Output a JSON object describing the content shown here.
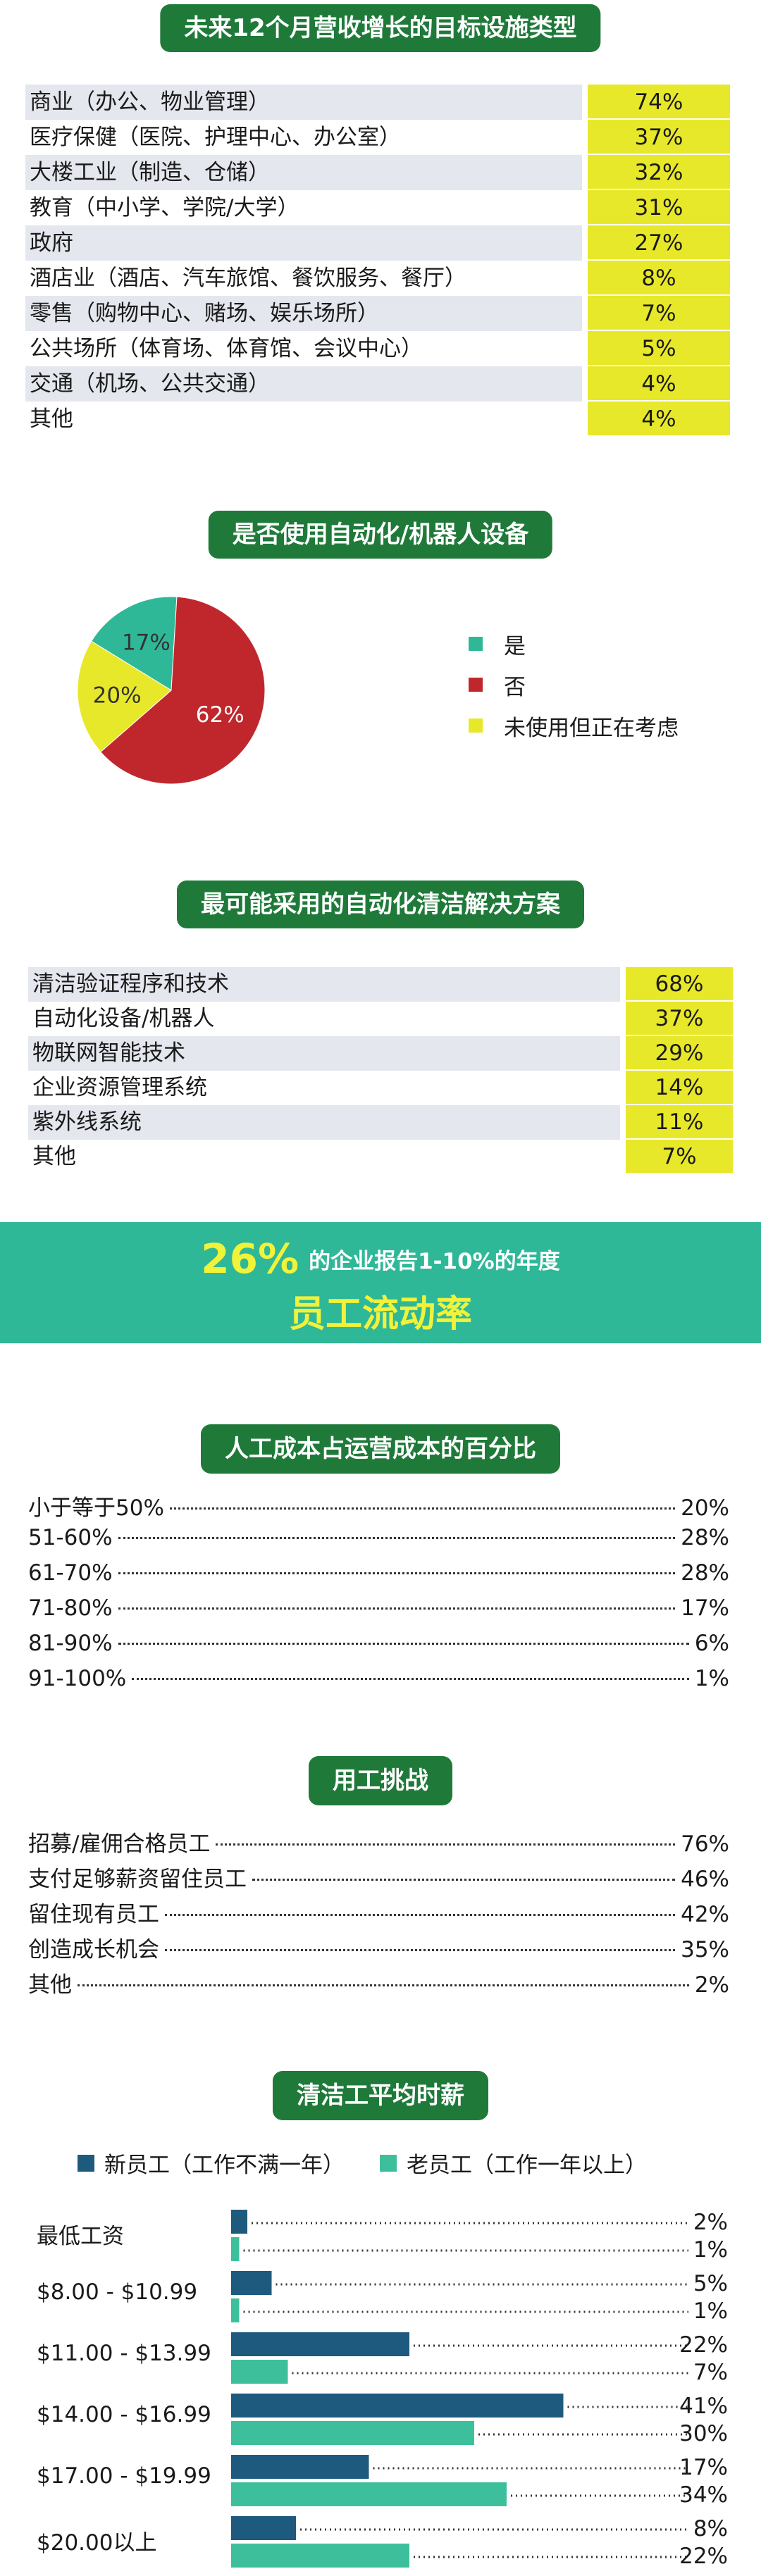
{
  "colors": {
    "title_green": "#1f7a3a",
    "highlight_yellow": "#e8e82a",
    "row_shade": "#e4e7ed",
    "pie_yes": "#2fb897",
    "pie_no": "#c0272d",
    "pie_considering": "#e8e82a",
    "banner_bg": "#2fb897",
    "banner_text_yellow": "#f1f23a",
    "new_staff": "#1e5a7e",
    "old_staff": "#3dbf9c"
  },
  "section1": {
    "title": "未来12个月营收增长的目标设施类型",
    "rows": [
      {
        "label": "商业（办公、物业管理）",
        "value": "74%"
      },
      {
        "label": "医疗保健（医院、护理中心、办公室）",
        "value": "37%"
      },
      {
        "label": "大楼工业（制造、仓储）",
        "value": "32%"
      },
      {
        "label": "教育（中小学、学院/大学）",
        "value": "31%"
      },
      {
        "label": "政府",
        "value": "27%"
      },
      {
        "label": "酒店业（酒店、汽车旅馆、餐饮服务、餐厅）",
        "value": "8%"
      },
      {
        "label": "零售（购物中心、赌场、娱乐场所）",
        "value": "7%"
      },
      {
        "label": "公共场所（体育场、体育馆、会议中心）",
        "value": "5%"
      },
      {
        "label": "交通（机场、公共交通）",
        "value": "4%"
      },
      {
        "label": "其他",
        "value": "4%"
      }
    ]
  },
  "section2": {
    "title": "是否使用自动化/机器人设备",
    "legend": [
      {
        "label": "是",
        "color": "#2fb897"
      },
      {
        "label": "否",
        "color": "#c0272d"
      },
      {
        "label": "未使用但正在考虑",
        "color": "#e8e82a"
      }
    ]
  },
  "section3": {
    "title": "最可能采用的自动化清洁解决方案",
    "rows": [
      {
        "label": "清洁验证程序和技术",
        "value": "68%"
      },
      {
        "label": "自动化设备/机器人",
        "value": "37%"
      },
      {
        "label": "物联网智能技术",
        "value": "29%"
      },
      {
        "label": "企业资源管理系统",
        "value": "14%"
      },
      {
        "label": "紫外线系统",
        "value": "11%"
      },
      {
        "label": "其他",
        "value": "7%"
      }
    ]
  },
  "banner": {
    "big_number": "26%",
    "line1_text": "的企业报告1-10%的年度",
    "line2_text": "员工流动率"
  },
  "section4": {
    "title": "人工成本占运营成本的百分比",
    "rows": [
      {
        "label": "小于等于50%",
        "value": "20%"
      },
      {
        "label": "51-60%",
        "value": "28%"
      },
      {
        "label": "61-70%",
        "value": "28%"
      },
      {
        "label": "71-80%",
        "value": "17%"
      },
      {
        "label": "81-90%",
        "value": "6%"
      },
      {
        "label": "91-100%",
        "value": "1%"
      }
    ]
  },
  "section5": {
    "title": "用工挑战",
    "rows": [
      {
        "label": "招募/雇佣合格员工",
        "value": "76%"
      },
      {
        "label": "支付足够薪资留住员工",
        "value": "46%"
      },
      {
        "label": "留住现有员工",
        "value": "42%"
      },
      {
        "label": "创造成长机会",
        "value": "35%"
      },
      {
        "label": "其他",
        "value": "2%"
      }
    ]
  },
  "section6": {
    "title": "清洁工平均时薪",
    "legend_new": "新员工（工作不满一年）",
    "legend_old": "老员工（工作一年以上）"
  },
  "chart_data": [
    {
      "type": "pie",
      "title": "是否使用自动化/机器人设备",
      "categories": [
        "是",
        "否",
        "未使用但正在考虑"
      ],
      "values": [
        17,
        62,
        20
      ],
      "labels": [
        "17%",
        "62%",
        "20%"
      ]
    },
    {
      "type": "bar",
      "orientation": "horizontal",
      "title": "清洁工平均时薪",
      "categories": [
        "最低工资",
        "$8.00 - $10.99",
        "$11.00 - $13.99",
        "$14.00 - $16.99",
        "$17.00 - $19.99",
        "$20.00以上"
      ],
      "series": [
        {
          "name": "新员工（工作不满一年）",
          "values": [
            2,
            5,
            22,
            41,
            17,
            8
          ],
          "labels": [
            "2%",
            "5%",
            "22%",
            "41%",
            "17%",
            "8%"
          ]
        },
        {
          "name": "老员工（工作一年以上）",
          "values": [
            1,
            1,
            7,
            30,
            34,
            22
          ],
          "labels": [
            "1%",
            "1%",
            "7%",
            "30%",
            "34%",
            "22%"
          ]
        }
      ]
    }
  ]
}
